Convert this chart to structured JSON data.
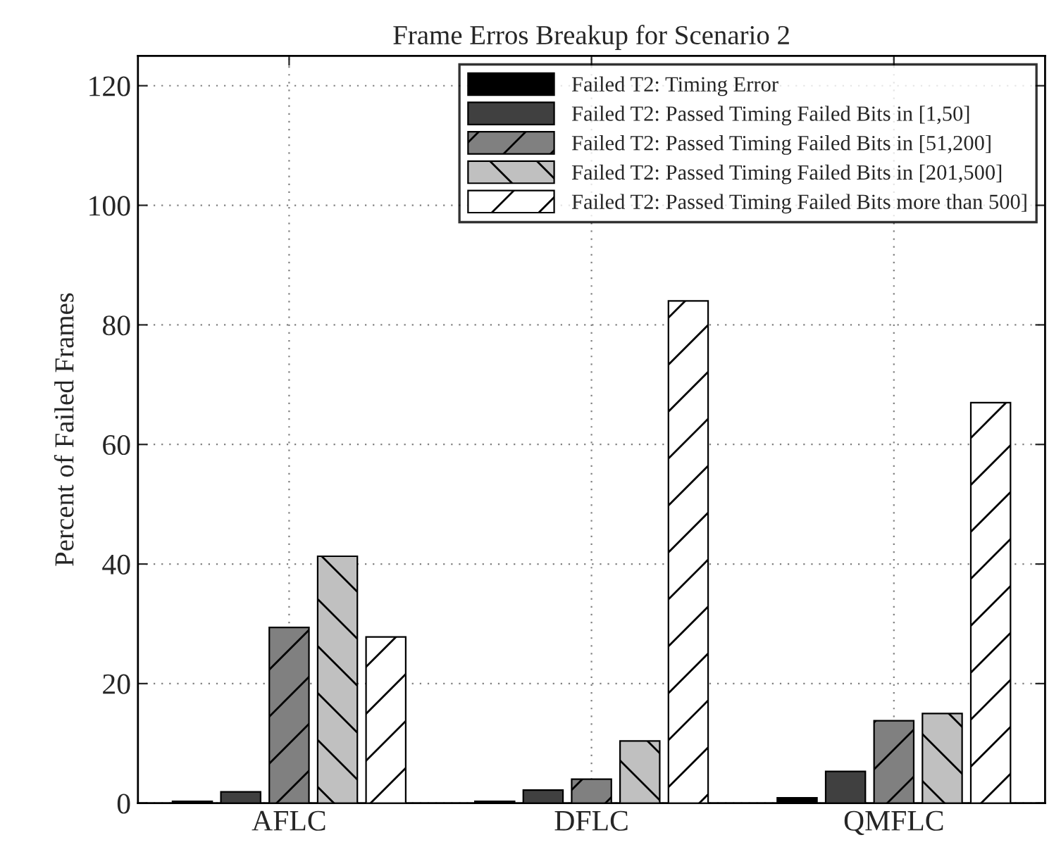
{
  "chart_data": {
    "type": "bar",
    "title": "Frame Erros Breakup for Scenario 2",
    "ylabel": "Percent of Failed Frames",
    "categories": [
      "AFLC",
      "DFLC",
      "QMFLC"
    ],
    "series": [
      {
        "name": "Failed T2: Timing Error",
        "color": "#000000",
        "values": [
          0.3,
          0.3,
          0.9
        ]
      },
      {
        "name": "Failed T2: Passed Timing Failed Bits in [1,50]",
        "color": "#404040",
        "values": [
          1.9,
          2.2,
          5.3
        ]
      },
      {
        "name": "Failed T2: Passed Timing Failed Bits in [51,200]",
        "color": "#808080",
        "values": [
          29.4,
          4.0,
          13.8
        ]
      },
      {
        "name": "Failed T2: Passed Timing Failed Bits in [201,500]",
        "color": "#c0c0c0",
        "values": [
          41.3,
          10.4,
          15.0
        ]
      },
      {
        "name": "Failed T2: Passed Timing Failed Bits more than 500]",
        "color": "#ffffff",
        "values": [
          27.8,
          84.0,
          67.0
        ]
      }
    ],
    "ylim": [
      0,
      125
    ],
    "yticks": [
      0,
      20,
      40,
      60,
      80,
      100,
      120
    ],
    "grid": true,
    "legend": "top right"
  }
}
